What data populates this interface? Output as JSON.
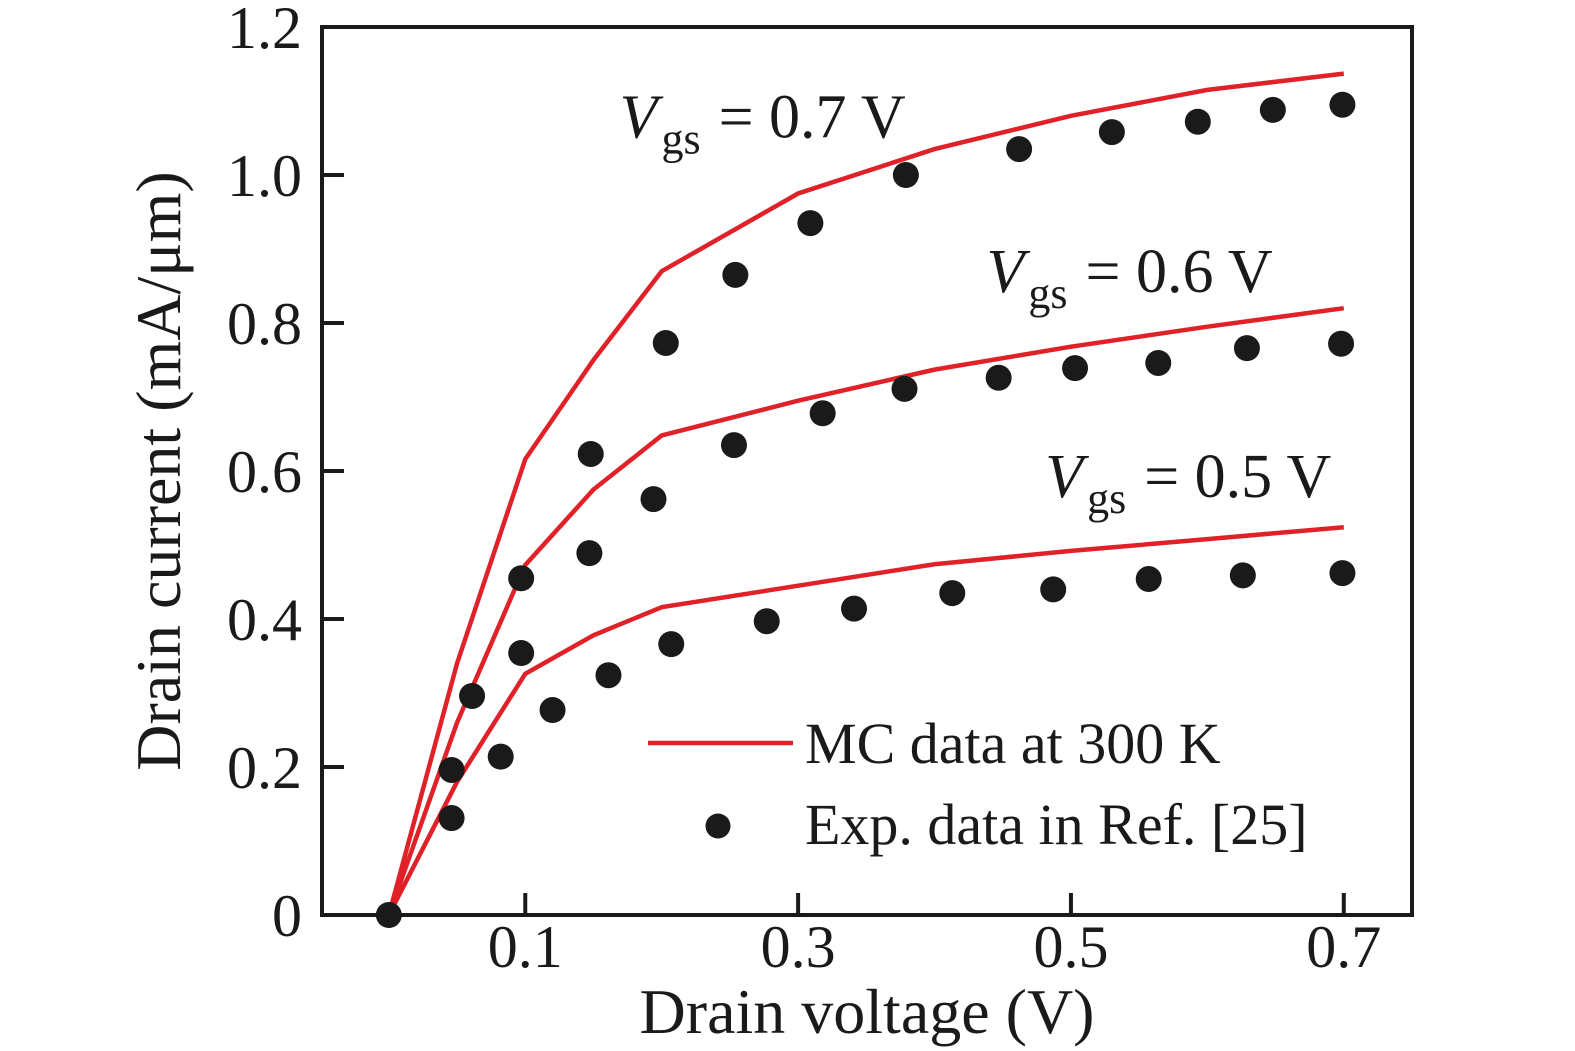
{
  "colors": {
    "mc_line": "#e02128",
    "exp_dot": "#1a1a1a",
    "axis": "#1a1a1a",
    "background": "#ffffff"
  },
  "legend": {
    "line_label": "MC data at 300 K",
    "dot_label": "Exp. data in Ref. [25]"
  },
  "chart_data": {
    "type": "line+scatter",
    "title": "",
    "xlabel": "Drain voltage (V)",
    "ylabel": "Drain current (mA/μm)",
    "grid": false,
    "legend_position": "lower center inside plot",
    "x_axis": {
      "min": -0.049,
      "max": 0.75,
      "ticks": [
        0.1,
        0.3,
        0.5,
        0.7
      ],
      "tick_labels": [
        "0.1",
        "0.3",
        "0.5",
        "0.7"
      ]
    },
    "y_axis": {
      "min": 0,
      "max": 1.2,
      "ticks": [
        0,
        0.2,
        0.4,
        0.6,
        0.8,
        1.0,
        1.2
      ],
      "tick_labels": [
        "0",
        "0.2",
        "0.4",
        "0.6",
        "0.8",
        "1.0",
        "1.2"
      ]
    },
    "mc_lines": [
      {
        "name": "Vgs = 0.7 V",
        "points": [
          [
            0,
            0
          ],
          [
            0.05,
            0.34
          ],
          [
            0.1,
            0.616
          ],
          [
            0.15,
            0.75
          ],
          [
            0.2,
            0.87
          ],
          [
            0.3,
            0.975
          ],
          [
            0.4,
            1.035
          ],
          [
            0.5,
            1.08
          ],
          [
            0.6,
            1.115
          ],
          [
            0.7,
            1.137
          ]
        ]
      },
      {
        "name": "Vgs = 0.6 V",
        "points": [
          [
            0,
            0
          ],
          [
            0.05,
            0.26
          ],
          [
            0.1,
            0.473
          ],
          [
            0.15,
            0.575
          ],
          [
            0.2,
            0.648
          ],
          [
            0.3,
            0.695
          ],
          [
            0.4,
            0.737
          ],
          [
            0.5,
            0.768
          ],
          [
            0.6,
            0.795
          ],
          [
            0.7,
            0.82
          ]
        ]
      },
      {
        "name": "Vgs = 0.5 V",
        "points": [
          [
            0,
            0
          ],
          [
            0.05,
            0.18
          ],
          [
            0.1,
            0.326
          ],
          [
            0.15,
            0.378
          ],
          [
            0.2,
            0.416
          ],
          [
            0.3,
            0.445
          ],
          [
            0.4,
            0.474
          ],
          [
            0.5,
            0.492
          ],
          [
            0.6,
            0.508
          ],
          [
            0.7,
            0.524
          ]
        ]
      }
    ],
    "exp_dots": [
      {
        "name": "Vgs = 0.7 V",
        "points": [
          [
            0,
            0
          ],
          [
            0.061,
            0.296
          ],
          [
            0.097,
            0.455
          ],
          [
            0.148,
            0.623
          ],
          [
            0.203,
            0.773
          ],
          [
            0.254,
            0.865
          ],
          [
            0.309,
            0.935
          ],
          [
            0.379,
            1.0
          ],
          [
            0.462,
            1.035
          ],
          [
            0.53,
            1.058
          ],
          [
            0.593,
            1.072
          ],
          [
            0.648,
            1.088
          ],
          [
            0.699,
            1.095
          ]
        ]
      },
      {
        "name": "Vgs = 0.6 V",
        "points": [
          [
            0.046,
            0.196
          ],
          [
            0.097,
            0.354
          ],
          [
            0.147,
            0.489
          ],
          [
            0.194,
            0.562
          ],
          [
            0.253,
            0.635
          ],
          [
            0.318,
            0.678
          ],
          [
            0.378,
            0.711
          ],
          [
            0.447,
            0.726
          ],
          [
            0.503,
            0.739
          ],
          [
            0.564,
            0.746
          ],
          [
            0.629,
            0.766
          ],
          [
            0.698,
            0.772
          ]
        ]
      },
      {
        "name": "Vgs = 0.5 V",
        "points": [
          [
            0.046,
            0.131
          ],
          [
            0.082,
            0.214
          ],
          [
            0.12,
            0.277
          ],
          [
            0.161,
            0.324
          ],
          [
            0.207,
            0.366
          ],
          [
            0.277,
            0.397
          ],
          [
            0.341,
            0.414
          ],
          [
            0.413,
            0.435
          ],
          [
            0.487,
            0.44
          ],
          [
            0.557,
            0.454
          ],
          [
            0.626,
            0.459
          ],
          [
            0.699,
            0.462
          ]
        ]
      }
    ],
    "annotations": [
      {
        "var": "V",
        "sub": "gs",
        "rest": "= 0.7 V",
        "x": 0.274,
        "y": 1.051
      },
      {
        "var": "V",
        "sub": "gs",
        "rest": "= 0.6 V",
        "x": 0.543,
        "y": 0.842
      },
      {
        "var": "V",
        "sub": "gs",
        "rest": "= 0.5 V",
        "x": 0.586,
        "y": 0.565
      }
    ]
  }
}
